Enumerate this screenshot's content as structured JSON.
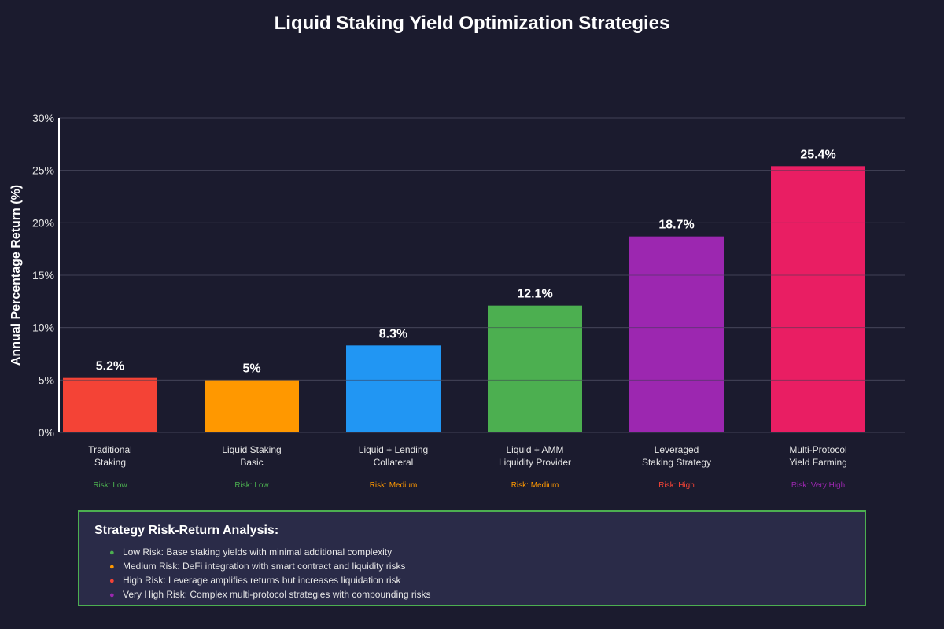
{
  "chart_data": {
    "type": "bar",
    "title": "Liquid Staking Yield Optimization Strategies",
    "xlabel": "",
    "ylabel": "Annual Percentage Return (%)",
    "ylim": [
      0,
      30
    ],
    "yticks": [
      0,
      5,
      10,
      15,
      20,
      25,
      30
    ],
    "ytick_labels": [
      "0%",
      "5%",
      "10%",
      "15%",
      "20%",
      "25%",
      "30%"
    ],
    "grid": true,
    "categories": [
      [
        "Traditional",
        "Staking"
      ],
      [
        "Liquid Staking",
        "Basic"
      ],
      [
        "Liquid + Lending",
        "Collateral"
      ],
      [
        "Liquid + AMM",
        "Liquidity Provider"
      ],
      [
        "Leveraged",
        "Staking Strategy"
      ],
      [
        "Multi-Protocol",
        "Yield Farming"
      ]
    ],
    "values": [
      5.2,
      5,
      8.3,
      12.1,
      18.7,
      25.4
    ],
    "value_labels": [
      "5.2%",
      "5%",
      "8.3%",
      "12.1%",
      "18.7%",
      "25.4%"
    ],
    "bar_colors": [
      "#f44336",
      "#ff9800",
      "#2196f3",
      "#4caf50",
      "#9c27b0",
      "#e91e63"
    ],
    "risk_labels": [
      "Risk: Low",
      "Risk: Low",
      "Risk: Medium",
      "Risk: Medium",
      "Risk: High",
      "Risk: Very High"
    ],
    "risk_colors": [
      "#4caf50",
      "#4caf50",
      "#ff9800",
      "#ff9800",
      "#f44336",
      "#9c27b0"
    ]
  },
  "analysis": {
    "title": "Strategy Risk-Return Analysis:",
    "items": [
      {
        "bullet": "●",
        "color": "#4caf50",
        "text": "Low Risk: Base staking yields with minimal additional complexity"
      },
      {
        "bullet": "●",
        "color": "#ff9800",
        "text": "Medium Risk: DeFi integration with smart contract and liquidity risks"
      },
      {
        "bullet": "●",
        "color": "#f44336",
        "text": "High Risk: Leverage amplifies returns but increases liquidation risk"
      },
      {
        "bullet": "●",
        "color": "#9c27b0",
        "text": "Very High Risk: Complex multi-protocol strategies with compounding risks"
      }
    ]
  }
}
